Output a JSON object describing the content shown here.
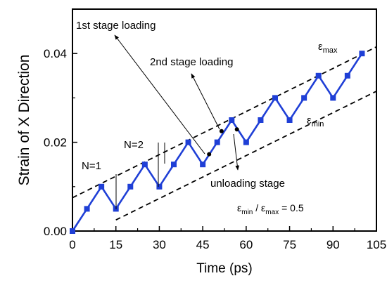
{
  "chart_data": {
    "type": "line",
    "xlabel": "Time (ps)",
    "ylabel": "Strain of  X Direction",
    "xlim": [
      0,
      105
    ],
    "ylim": [
      0,
      0.05
    ],
    "x_ticks": [
      0,
      15,
      30,
      45,
      60,
      75,
      90,
      105
    ],
    "y_ticks": [
      0.0,
      0.02,
      0.04
    ],
    "x_tick_labels": [
      "0",
      "15",
      "30",
      "45",
      "60",
      "75",
      "90",
      "105"
    ],
    "y_tick_labels": [
      "0.00",
      "0.02",
      "0.04"
    ],
    "grid": false,
    "series": [
      {
        "color": "#1f3fd6",
        "marker": "square",
        "x": [
          0,
          5,
          10,
          15,
          20,
          25,
          30,
          35,
          40,
          45,
          50,
          55,
          60,
          65,
          70,
          75,
          80,
          85,
          90,
          95,
          100
        ],
        "y": [
          0.0,
          0.005,
          0.01,
          0.005,
          0.01,
          0.015,
          0.01,
          0.015,
          0.02,
          0.015,
          0.02,
          0.025,
          0.02,
          0.025,
          0.03,
          0.025,
          0.03,
          0.035,
          0.03,
          0.035,
          0.04
        ]
      }
    ],
    "envelope_lines": [
      {
        "label": "εmax",
        "x": [
          0,
          105
        ],
        "y": [
          0.0075,
          0.0415
        ]
      },
      {
        "label": "εmin",
        "x": [
          15,
          105
        ],
        "y": [
          0.0025,
          0.0315
        ]
      }
    ],
    "transition_points": [
      {
        "x": 47.2,
        "y": 0.0173
      },
      {
        "x": 51.5,
        "y": 0.0225
      },
      {
        "x": 56.8,
        "y": 0.0229
      }
    ],
    "annotations": {
      "stage1": "1st stage loading",
      "stage2": "2nd stage loading",
      "unloading": "unloading stage",
      "n1": "N=1",
      "n2": "N=2",
      "eps_symbol": "ε",
      "eps_max_sub": "max",
      "eps_min_sub": "min",
      "ratio_eq": " = 0.5",
      "ratio_slash": " / "
    }
  }
}
